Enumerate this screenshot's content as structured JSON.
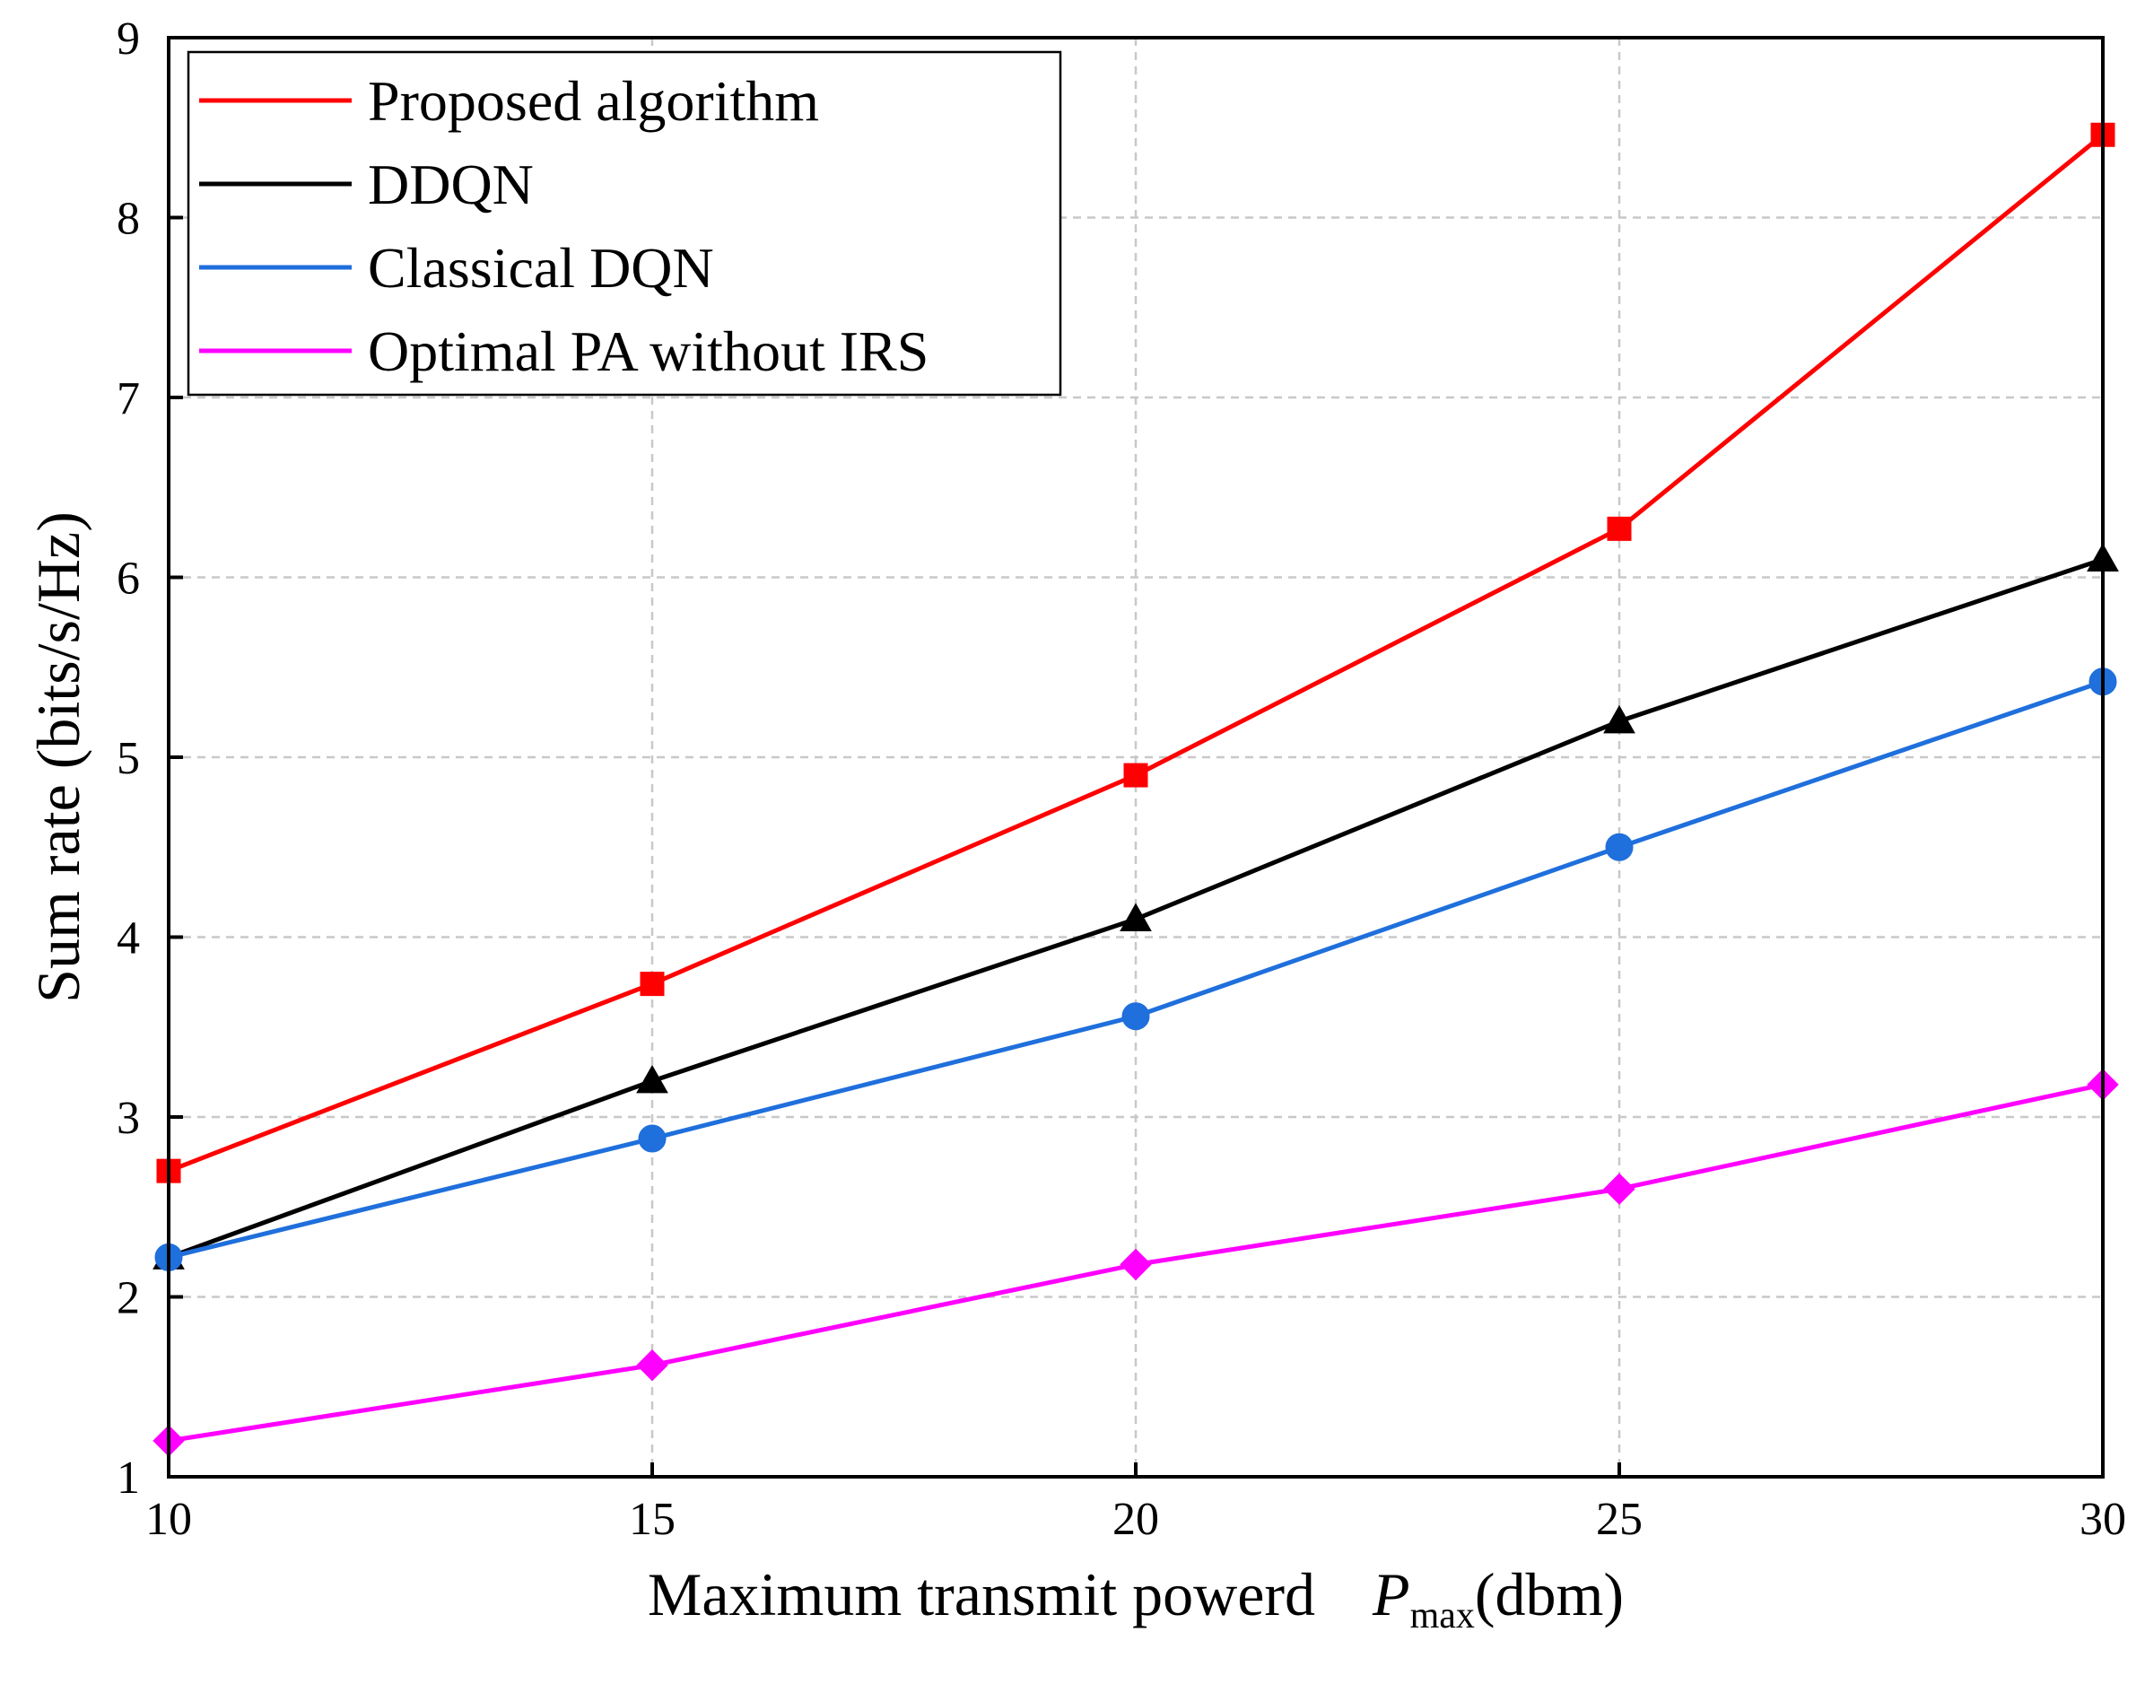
{
  "chart_data": {
    "type": "line",
    "title": "",
    "xlabel_main": "Maximum transmit powerd",
    "xlabel_symbol": "P",
    "xlabel_subscript": "max",
    "xlabel_unit": "(dbm)",
    "ylabel": "Sum rate (bits/s/Hz)",
    "x": [
      10,
      15,
      20,
      25,
      30
    ],
    "xlim": [
      10,
      30
    ],
    "ylim": [
      1,
      9
    ],
    "xticks": [
      "10",
      "15",
      "20",
      "25",
      "30"
    ],
    "yticks": [
      "1",
      "2",
      "3",
      "4",
      "5",
      "6",
      "7",
      "8",
      "9"
    ],
    "grid": true,
    "legend_position": "top-left",
    "series": [
      {
        "name": "Proposed algorithm",
        "color": "#ff0000",
        "marker": "square",
        "values": [
          2.7,
          3.74,
          4.9,
          6.27,
          8.46
        ]
      },
      {
        "name": "DDQN",
        "color": "#000000",
        "marker": "triangle",
        "values": [
          2.22,
          3.2,
          4.1,
          5.2,
          6.1
        ]
      },
      {
        "name": "Classical DQN",
        "color": "#1f6fdc",
        "marker": "circle",
        "values": [
          2.22,
          2.88,
          3.56,
          4.5,
          5.42
        ]
      },
      {
        "name": "Optimal PA without IRS",
        "color": "#ff00ff",
        "marker": "diamond",
        "values": [
          1.2,
          1.62,
          2.18,
          2.6,
          3.18
        ]
      }
    ]
  }
}
